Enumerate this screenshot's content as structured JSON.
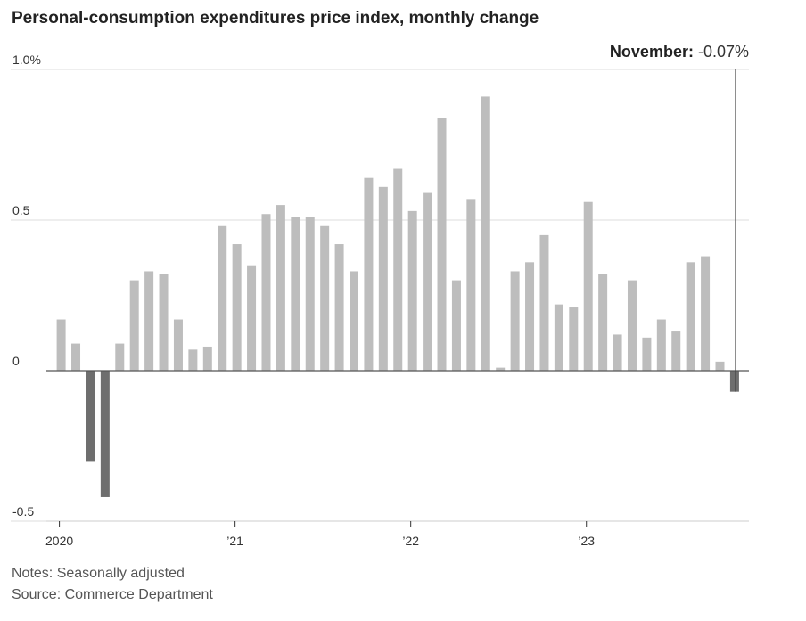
{
  "title": "Personal-consumption expenditures price index, monthly change",
  "notes": "Notes: Seasonally adjusted",
  "source": "Source: Commerce Department",
  "chart_data": {
    "type": "bar",
    "title": "Personal-consumption expenditures price index, monthly change",
    "xlabel": "",
    "ylabel": "",
    "ylim": [
      -0.5,
      1.0
    ],
    "yticks": [
      {
        "value": 1.0,
        "label": "1.0%"
      },
      {
        "value": 0.5,
        "label": "0.5"
      },
      {
        "value": 0,
        "label": "0"
      },
      {
        "value": -0.5,
        "label": "-0.5"
      }
    ],
    "xticks": [
      {
        "index": 0,
        "label": "2020"
      },
      {
        "index": 12,
        "label": "’21"
      },
      {
        "index": 24,
        "label": "’22"
      },
      {
        "index": 36,
        "label": "’23"
      }
    ],
    "grid": true,
    "colors": {
      "positive": "#bdbdbd",
      "negative": "#6e6e6e",
      "grid": "#dddddd",
      "zero": "#555555",
      "annotation_line": "#444444"
    },
    "categories": [
      "Jan 2020",
      "Feb 2020",
      "Mar 2020",
      "Apr 2020",
      "May 2020",
      "Jun 2020",
      "Jul 2020",
      "Aug 2020",
      "Sep 2020",
      "Oct 2020",
      "Nov 2020",
      "Dec 2020",
      "Jan 2021",
      "Feb 2021",
      "Mar 2021",
      "Apr 2021",
      "May 2021",
      "Jun 2021",
      "Jul 2021",
      "Aug 2021",
      "Sep 2021",
      "Oct 2021",
      "Nov 2021",
      "Dec 2021",
      "Jan 2022",
      "Feb 2022",
      "Mar 2022",
      "Apr 2022",
      "May 2022",
      "Jun 2022",
      "Jul 2022",
      "Aug 2022",
      "Sep 2022",
      "Oct 2022",
      "Nov 2022",
      "Dec 2022",
      "Jan 2023",
      "Feb 2023",
      "Mar 2023",
      "Apr 2023",
      "May 2023",
      "Jun 2023",
      "Jul 2023",
      "Aug 2023",
      "Sep 2023",
      "Oct 2023",
      "Nov 2023"
    ],
    "values": [
      0.17,
      0.09,
      -0.3,
      -0.42,
      0.09,
      0.3,
      0.33,
      0.32,
      0.17,
      0.07,
      0.08,
      0.48,
      0.42,
      0.35,
      0.52,
      0.55,
      0.51,
      0.51,
      0.48,
      0.42,
      0.33,
      0.64,
      0.61,
      0.67,
      0.53,
      0.59,
      0.84,
      0.3,
      0.57,
      0.91,
      0.01,
      0.33,
      0.36,
      0.45,
      0.22,
      0.21,
      0.56,
      0.32,
      0.12,
      0.3,
      0.11,
      0.17,
      0.13,
      0.36,
      0.38,
      0.03,
      -0.07
    ],
    "annotation": {
      "label": "November:",
      "value": "-0.07%"
    }
  }
}
